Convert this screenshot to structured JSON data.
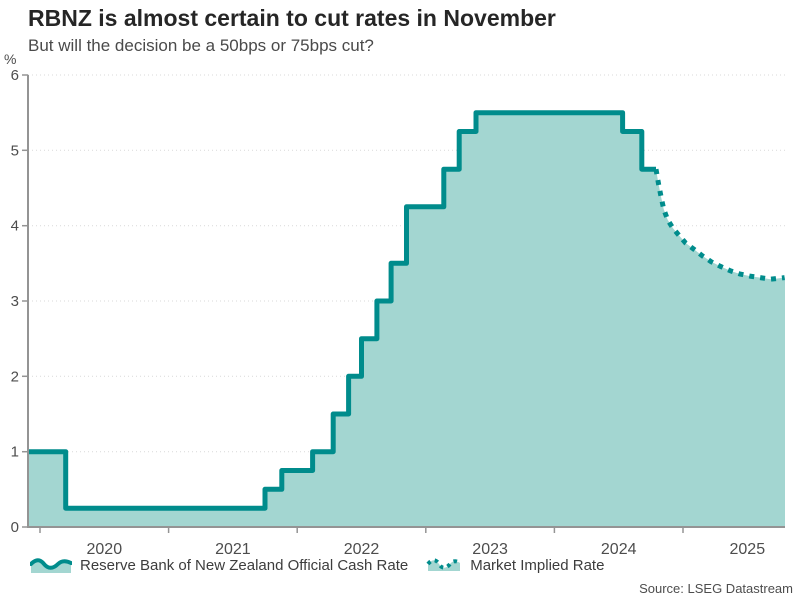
{
  "colors": {
    "line": "#008C8C",
    "fill": "#A3D6D1",
    "grid": "#D9D9D9",
    "axis": "#949494",
    "tick_text": "#4D4D4D"
  },
  "chart_data": {
    "type": "area",
    "title": "RBNZ is almost certain to cut rates in November",
    "subtitle": "But will the decision be a 50bps or 75bps cut?",
    "ylabel": "%",
    "source": "Source: LSEG Datastream",
    "ylim": [
      0,
      6
    ],
    "xlim_years": [
      2019.91,
      2025.79
    ],
    "y_ticks": [
      0,
      1,
      2,
      3,
      4,
      5,
      6
    ],
    "x_ticks": [
      2020,
      2021,
      2022,
      2023,
      2024,
      2025
    ],
    "grid": "horizontal-dotted",
    "legend_position": "bottom",
    "series": [
      {
        "name": "Reserve Bank of New Zealand Official Cash Rate",
        "type": "step-area",
        "line_style": "solid",
        "points": [
          [
            2019.91,
            1.0
          ],
          [
            2020.2,
            0.25
          ],
          [
            2021.75,
            0.5
          ],
          [
            2021.88,
            0.75
          ],
          [
            2022.12,
            1.0
          ],
          [
            2022.28,
            1.5
          ],
          [
            2022.4,
            2.0
          ],
          [
            2022.5,
            2.5
          ],
          [
            2022.62,
            3.0
          ],
          [
            2022.73,
            3.5
          ],
          [
            2022.85,
            4.25
          ],
          [
            2023.14,
            4.75
          ],
          [
            2023.26,
            5.25
          ],
          [
            2023.39,
            5.5
          ],
          [
            2024.53,
            5.25
          ],
          [
            2024.68,
            4.75
          ]
        ],
        "end_x": 2024.79
      },
      {
        "name": "Market Implied Rate",
        "type": "line-area",
        "line_style": "dotted",
        "points": [
          [
            2024.79,
            4.75
          ],
          [
            2024.81,
            4.55
          ],
          [
            2024.83,
            4.38
          ],
          [
            2024.85,
            4.22
          ],
          [
            2024.88,
            4.08
          ],
          [
            2024.92,
            3.97
          ],
          [
            2024.97,
            3.87
          ],
          [
            2025.02,
            3.77
          ],
          [
            2025.09,
            3.68
          ],
          [
            2025.15,
            3.6
          ],
          [
            2025.22,
            3.52
          ],
          [
            2025.29,
            3.46
          ],
          [
            2025.37,
            3.4
          ],
          [
            2025.44,
            3.36
          ],
          [
            2025.52,
            3.33
          ],
          [
            2025.6,
            3.31
          ],
          [
            2025.68,
            3.29
          ],
          [
            2025.74,
            3.3
          ],
          [
            2025.79,
            3.31
          ]
        ]
      }
    ]
  }
}
